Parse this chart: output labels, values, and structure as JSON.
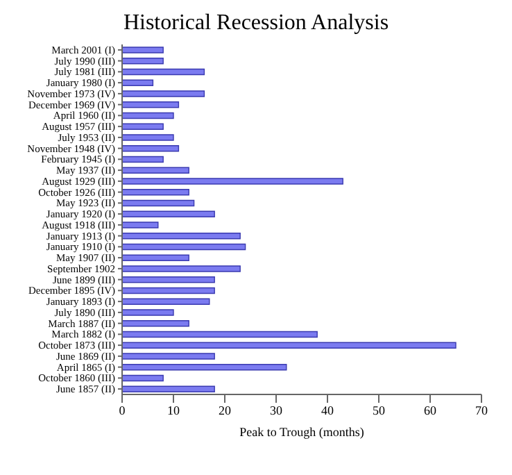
{
  "chart_data": {
    "type": "bar",
    "title": "Historical Recession Analysis",
    "xlabel": "Peak to Trough (months)",
    "orientation": "horizontal",
    "categories": [
      "March 2001 (I)",
      "July 1990 (III)",
      "July 1981 (III)",
      "January 1980 (I)",
      "November 1973 (IV)",
      "December 1969 (IV)",
      "April 1960 (II)",
      "August 1957 (III)",
      "July 1953 (II)",
      "November 1948 (IV)",
      "February 1945 (I)",
      "May 1937 (II)",
      "August 1929 (III)",
      "October 1926 (III)",
      "May 1923 (II)",
      "January 1920 (I)",
      "August 1918 (III)",
      "January 1913 (I)",
      "January 1910 (I)",
      "May 1907 (II)",
      "September 1902",
      "June 1899 (III)",
      "December 1895 (IV)",
      "January 1893 (I)",
      "July 1890 (III)",
      "March 1887 (II)",
      "March 1882 (I)",
      "October 1873 (III)",
      "June 1869 (II)",
      "April 1865 (I)",
      "October 1860 (III)",
      "June 1857 (II)"
    ],
    "values": [
      8,
      8,
      16,
      6,
      16,
      11,
      10,
      8,
      10,
      11,
      8,
      13,
      43,
      13,
      14,
      18,
      7,
      23,
      24,
      13,
      23,
      18,
      18,
      17,
      10,
      13,
      38,
      65,
      18,
      32,
      8,
      18
    ],
    "color": "#7b7bf0",
    "xlim": [
      0,
      70
    ],
    "xticks": [
      0,
      10,
      20,
      30,
      40,
      50,
      60,
      70
    ]
  }
}
